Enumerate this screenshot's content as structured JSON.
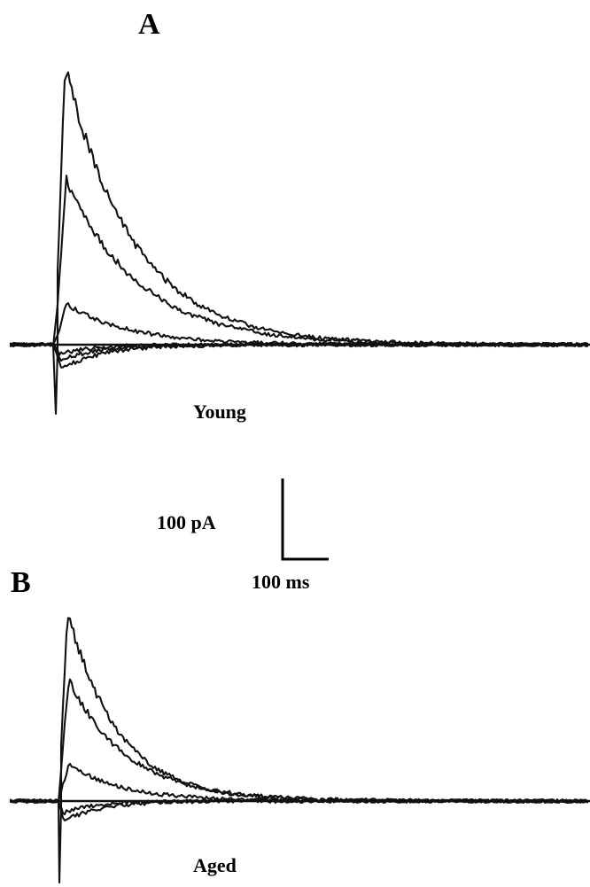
{
  "chart_data": [
    {
      "type": "line",
      "panel": "A",
      "caption": "Young",
      "x_unit": "ms",
      "y_unit": "pA",
      "series": [
        {
          "peak_pA": 345,
          "time_to_peak_ms": 22,
          "decay_tau_ms": 150
        },
        {
          "peak_pA": 205,
          "time_to_peak_ms": 24,
          "decay_tau_ms": 160
        },
        {
          "peak_pA": 50,
          "time_to_peak_ms": 25,
          "decay_tau_ms": 140
        },
        {
          "peak_pA": -30,
          "time_to_peak_ms": 14,
          "decay_tau_ms": 90
        },
        {
          "peak_pA": -20,
          "time_to_peak_ms": 12,
          "decay_tau_ms": 80
        },
        {
          "peak_pA": -12,
          "time_to_peak_ms": 10,
          "decay_tau_ms": 70
        }
      ]
    },
    {
      "type": "line",
      "panel": "B",
      "caption": "Aged",
      "x_unit": "ms",
      "y_unit": "pA",
      "series": [
        {
          "peak_pA": 235,
          "time_to_peak_ms": 20,
          "decay_tau_ms": 110
        },
        {
          "peak_pA": 150,
          "time_to_peak_ms": 22,
          "decay_tau_ms": 130
        },
        {
          "peak_pA": 45,
          "time_to_peak_ms": 22,
          "decay_tau_ms": 120
        },
        {
          "peak_pA": -25,
          "time_to_peak_ms": 12,
          "decay_tau_ms": 80
        },
        {
          "peak_pA": -15,
          "time_to_peak_ms": 10,
          "decay_tau_ms": 70
        }
      ]
    }
  ],
  "scale_bar": {
    "y_label": "100 pA",
    "x_label": "100 ms"
  }
}
